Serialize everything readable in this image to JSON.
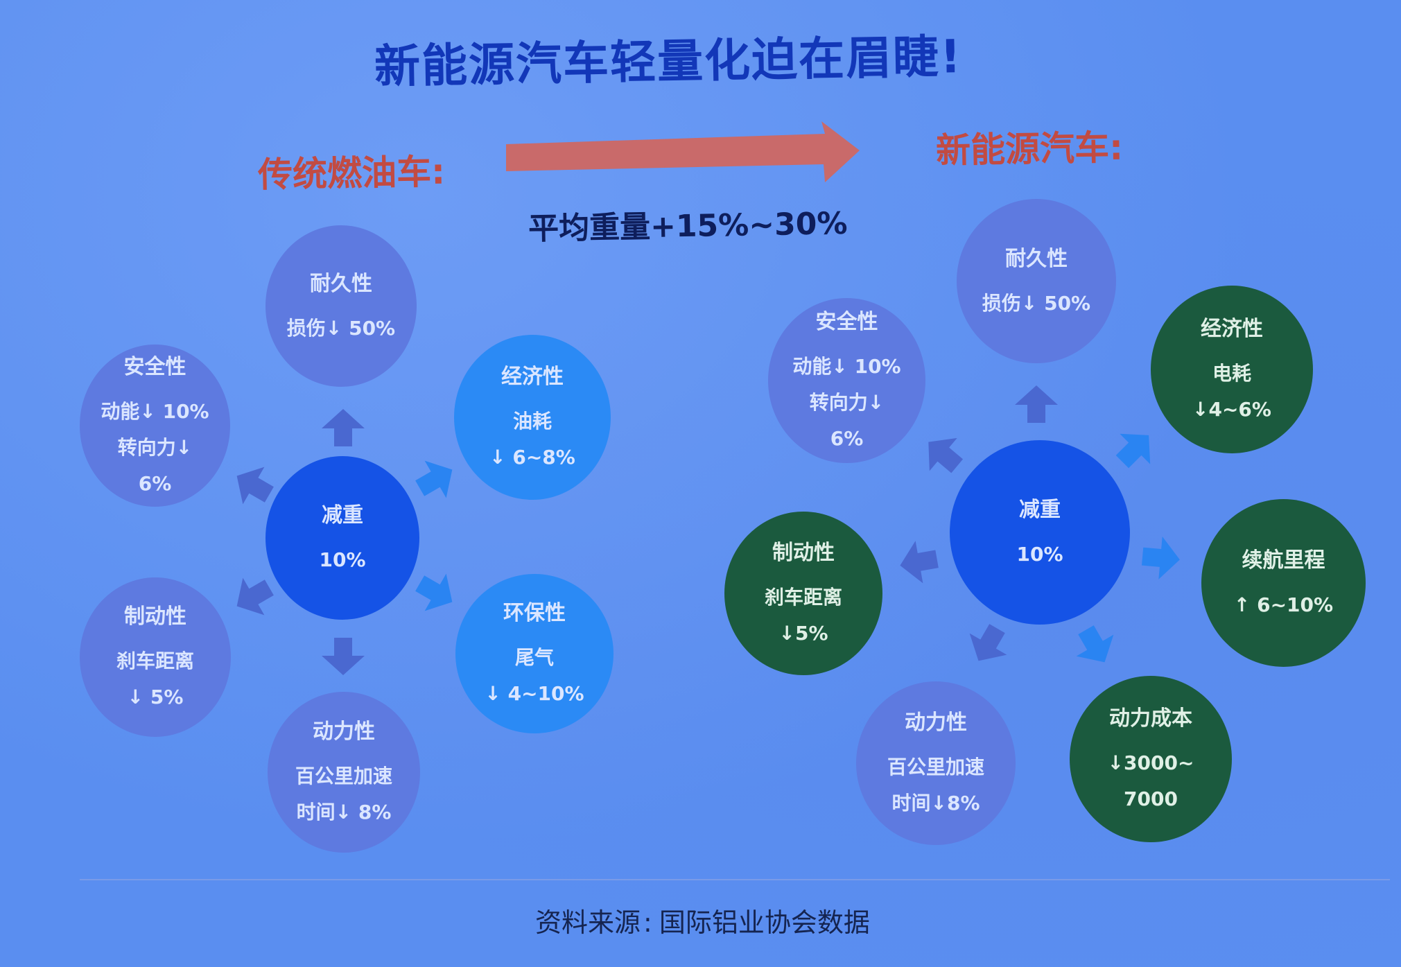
{
  "title": "新能源汽车轻量化迫在眉睫!",
  "left": {
    "heading": "传统燃油车:",
    "center": {
      "title": "减重",
      "lines": [
        "10%"
      ]
    },
    "nodes": [
      {
        "id": "durability",
        "title": "耐久性",
        "lines": [
          "损伤↓ 50%"
        ]
      },
      {
        "id": "safety",
        "title": "安全性",
        "lines": [
          "动能↓ 10%",
          "转向力↓",
          "6%"
        ]
      },
      {
        "id": "economy",
        "title": "经济性",
        "lines": [
          "油耗",
          "↓ 6~8%"
        ]
      },
      {
        "id": "braking",
        "title": "制动性",
        "lines": [
          "刹车距离",
          "↓ 5%"
        ]
      },
      {
        "id": "environment",
        "title": "环保性",
        "lines": [
          "尾气",
          "↓ 4~10%"
        ]
      },
      {
        "id": "power",
        "title": "动力性",
        "lines": [
          "百公里加速",
          "时间↓ 8%"
        ]
      }
    ]
  },
  "middle": {
    "weight_text": "平均重量+15%~30%"
  },
  "right": {
    "heading": "新能源汽车:",
    "center": {
      "title": "减重",
      "lines": [
        "10%"
      ]
    },
    "nodes": [
      {
        "id": "durability",
        "title": "耐久性",
        "lines": [
          "损伤↓ 50%"
        ]
      },
      {
        "id": "safety",
        "title": "安全性",
        "lines": [
          "动能↓ 10%",
          "转向力↓",
          "6%"
        ]
      },
      {
        "id": "economy",
        "title": "经济性",
        "lines": [
          "电耗",
          "↓4~6%"
        ]
      },
      {
        "id": "braking",
        "title": "制动性",
        "lines": [
          "刹车距离",
          "↓5%"
        ]
      },
      {
        "id": "range",
        "title": "续航里程",
        "lines": [
          "↑ 6~10%"
        ]
      },
      {
        "id": "power",
        "title": "动力性",
        "lines": [
          "百公里加速",
          "时间↓8%"
        ]
      },
      {
        "id": "power-cost",
        "title": "动力成本",
        "lines": [
          "↓3000~",
          "7000"
        ]
      }
    ]
  },
  "source": {
    "label": "资料来源",
    "colon": ":",
    "text": "国际铝业协会数据"
  },
  "colors": {
    "title": "#1237b8",
    "heading": "#c24b42",
    "grey_node": "#5e7ae0",
    "blue_node": "#2b8af5",
    "center_node": "#1553e6",
    "green_node": "#1b5a3e",
    "big_arrow": "#c96a6a"
  }
}
